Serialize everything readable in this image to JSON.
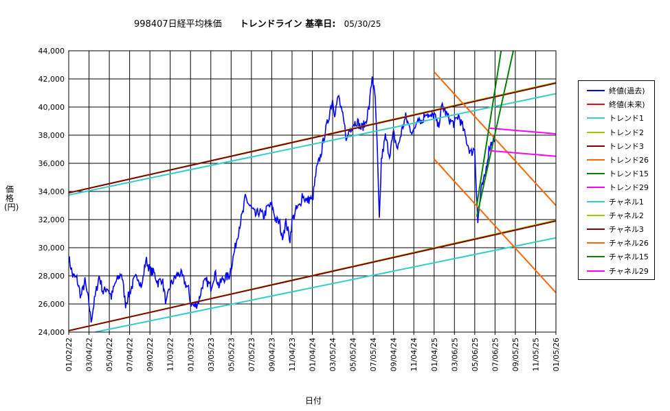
{
  "title": {
    "main": "998407日経平均株価",
    "sub": "トレンドライン 基準日:",
    "date": "05/30/25"
  },
  "chart_data": {
    "type": "line",
    "xlabel": "日付",
    "ylabel": "価格(円)",
    "ylim": [
      24000,
      44000
    ],
    "yticks": [
      "44,000",
      "42,000",
      "40,000",
      "38,000",
      "36,000",
      "34,000",
      "32,000",
      "30,000",
      "28,000",
      "26,000",
      "24,000"
    ],
    "xticks": [
      "01/02/22",
      "03/04/22",
      "05/04/22",
      "07/04/22",
      "09/02/22",
      "11/03/22",
      "01/03/23",
      "03/05/23",
      "05/05/23",
      "07/05/23",
      "09/04/23",
      "11/04/23",
      "01/04/24",
      "03/05/24",
      "05/05/24",
      "07/05/24",
      "09/04/24",
      "11/04/24",
      "01/04/25",
      "03/06/25",
      "05/06/25",
      "07/06/25",
      "09/05/25",
      "11/05/25",
      "01/05/26"
    ],
    "grid": true,
    "legend_position": "right",
    "price_anchors": [
      [
        0,
        29300
      ],
      [
        0.2,
        28000
      ],
      [
        0.4,
        27800
      ],
      [
        0.6,
        26500
      ],
      [
        0.8,
        27600
      ],
      [
        1.0,
        26000
      ],
      [
        1.1,
        24800
      ],
      [
        1.3,
        26500
      ],
      [
        1.5,
        28000
      ],
      [
        1.7,
        26800
      ],
      [
        1.9,
        27200
      ],
      [
        2.1,
        26500
      ],
      [
        2.3,
        27500
      ],
      [
        2.6,
        28200
      ],
      [
        2.8,
        26000
      ],
      [
        3.0,
        26800
      ],
      [
        3.2,
        27600
      ],
      [
        3.4,
        28000
      ],
      [
        3.6,
        27200
      ],
      [
        3.8,
        29200
      ],
      [
        4.0,
        28400
      ],
      [
        4.2,
        28200
      ],
      [
        4.4,
        27500
      ],
      [
        4.6,
        27800
      ],
      [
        4.8,
        26000
      ],
      [
        5.0,
        27300
      ],
      [
        5.3,
        28000
      ],
      [
        5.5,
        28200
      ],
      [
        5.7,
        27600
      ],
      [
        5.9,
        27000
      ],
      [
        6.0,
        26100
      ],
      [
        6.2,
        25800
      ],
      [
        6.4,
        26200
      ],
      [
        6.6,
        27400
      ],
      [
        6.8,
        27600
      ],
      [
        7.0,
        27200
      ],
      [
        7.2,
        28200
      ],
      [
        7.4,
        27300
      ],
      [
        7.6,
        27800
      ],
      [
        7.9,
        28000
      ],
      [
        8.0,
        28600
      ],
      [
        8.2,
        30000
      ],
      [
        8.4,
        31500
      ],
      [
        8.6,
        32600
      ],
      [
        8.7,
        33600
      ],
      [
        8.9,
        33000
      ],
      [
        9.0,
        32800
      ],
      [
        9.2,
        32300
      ],
      [
        9.4,
        32600
      ],
      [
        9.6,
        32200
      ],
      [
        9.8,
        32900
      ],
      [
        10.0,
        33000
      ],
      [
        10.2,
        32000
      ],
      [
        10.4,
        31700
      ],
      [
        10.5,
        30700
      ],
      [
        10.7,
        31800
      ],
      [
        10.9,
        30600
      ],
      [
        11.0,
        31900
      ],
      [
        11.2,
        32700
      ],
      [
        11.4,
        33000
      ],
      [
        11.5,
        33800
      ],
      [
        11.7,
        33300
      ],
      [
        11.9,
        33500
      ],
      [
        12.0,
        33300
      ],
      [
        12.2,
        35500
      ],
      [
        12.4,
        36500
      ],
      [
        12.6,
        38000
      ],
      [
        12.7,
        38600
      ],
      [
        12.8,
        39200
      ],
      [
        12.9,
        40000
      ],
      [
        13.0,
        40500
      ],
      [
        13.1,
        39600
      ],
      [
        13.3,
        40800
      ],
      [
        13.4,
        39900
      ],
      [
        13.5,
        39300
      ],
      [
        13.6,
        38500
      ],
      [
        13.7,
        37600
      ],
      [
        13.8,
        38300
      ],
      [
        13.9,
        38500
      ],
      [
        14.0,
        38800
      ],
      [
        14.2,
        39000
      ],
      [
        14.4,
        38500
      ],
      [
        14.6,
        38800
      ],
      [
        14.8,
        40000
      ],
      [
        14.95,
        42200
      ],
      [
        15.1,
        40500
      ],
      [
        15.2,
        37000
      ],
      [
        15.3,
        31800
      ],
      [
        15.4,
        36200
      ],
      [
        15.6,
        37900
      ],
      [
        15.8,
        36600
      ],
      [
        16.0,
        38100
      ],
      [
        16.2,
        37000
      ],
      [
        16.4,
        38300
      ],
      [
        16.6,
        39300
      ],
      [
        16.8,
        38500
      ],
      [
        17.0,
        38200
      ],
      [
        17.2,
        39400
      ],
      [
        17.4,
        38900
      ],
      [
        17.6,
        39700
      ],
      [
        17.8,
        39200
      ],
      [
        18.0,
        39500
      ],
      [
        18.2,
        38600
      ],
      [
        18.4,
        40100
      ],
      [
        18.6,
        39500
      ],
      [
        18.8,
        39000
      ],
      [
        19.0,
        38800
      ],
      [
        19.2,
        39400
      ],
      [
        19.4,
        38600
      ],
      [
        19.6,
        37600
      ],
      [
        19.8,
        36700
      ],
      [
        20.0,
        37100
      ],
      [
        20.15,
        31800
      ],
      [
        20.3,
        34000
      ],
      [
        20.5,
        35000
      ],
      [
        20.7,
        37000
      ],
      [
        20.9,
        37800
      ],
      [
        21.0,
        37700
      ]
    ],
    "series": [
      {
        "name": "終値(過去)",
        "color": "#0000ff",
        "line": "price"
      },
      {
        "name": "終値(未来)",
        "color": "#ff0000",
        "line": "none"
      },
      {
        "name": "トレンド1",
        "color": "#33cccc",
        "line": [
          [
            0,
            33750
          ],
          [
            24,
            40950
          ]
        ]
      },
      {
        "name": "トレンド2",
        "color": "#99cc00",
        "line": [
          [
            0,
            33900
          ],
          [
            24,
            41750
          ]
        ]
      },
      {
        "name": "トレンド3",
        "color": "#800000",
        "line": [
          [
            0,
            33900
          ],
          [
            24,
            41700
          ]
        ]
      },
      {
        "name": "トレンド26",
        "color": "#ff6600",
        "line": [
          [
            18.0,
            42500
          ],
          [
            24,
            33000
          ]
        ]
      },
      {
        "name": "トレンド15",
        "color": "#008000",
        "line": [
          [
            20.1,
            33000
          ],
          [
            21.3,
            44000
          ]
        ]
      },
      {
        "name": "トレンド29",
        "color": "#ff00ff",
        "line": [
          [
            20.7,
            38500
          ],
          [
            24,
            38100
          ]
        ]
      },
      {
        "name": "チャネル1",
        "color": "#33cccc",
        "line": [
          [
            1.3,
            24000
          ],
          [
            24,
            30700
          ]
        ]
      },
      {
        "name": "チャネル2",
        "color": "#99cc00",
        "line": [
          [
            0,
            24100
          ],
          [
            24,
            31950
          ]
        ]
      },
      {
        "name": "チャネル3",
        "color": "#800000",
        "line": [
          [
            0,
            24100
          ],
          [
            24,
            31900
          ]
        ]
      },
      {
        "name": "チャネル26",
        "color": "#ff6600",
        "line": [
          [
            18.0,
            36300
          ],
          [
            24,
            26800
          ]
        ]
      },
      {
        "name": "チャネル15",
        "color": "#008000",
        "line": [
          [
            20.1,
            32200
          ],
          [
            21.9,
            44000
          ]
        ]
      },
      {
        "name": "チャネル29",
        "color": "#ff00ff",
        "line": [
          [
            20.7,
            36900
          ],
          [
            24,
            36500
          ]
        ]
      }
    ]
  }
}
